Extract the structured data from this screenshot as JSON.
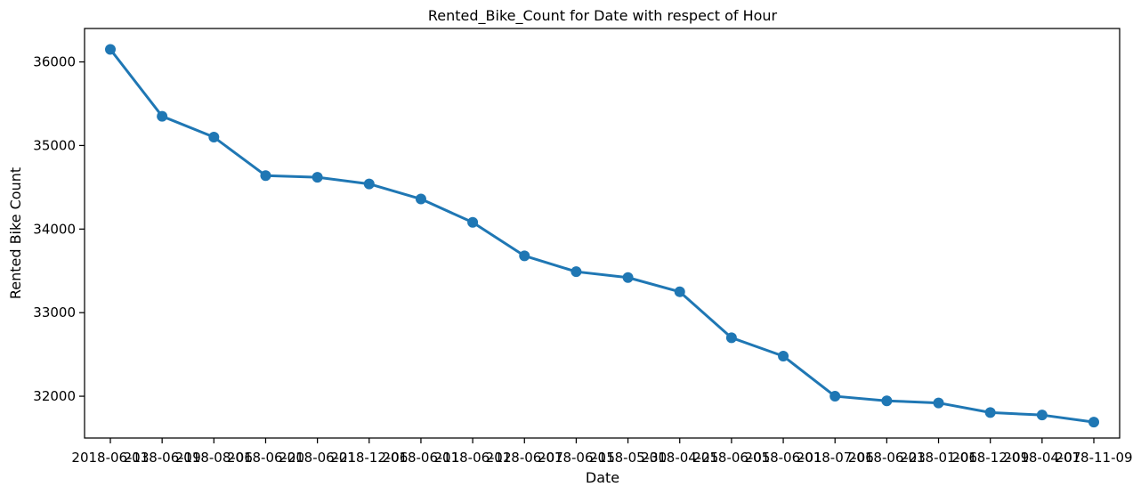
{
  "chart_data": {
    "type": "line",
    "title": "Rented_Bike_Count for Date with respect of Hour",
    "xlabel": "Date",
    "ylabel": "Rented Bike Count",
    "grid": false,
    "ylim": [
      31500,
      36400
    ],
    "yticks": [
      32000,
      33000,
      34000,
      35000,
      36000
    ],
    "color": "#1f77b4",
    "categories": [
      "2018-06-13",
      "2018-06-19",
      "2018-08-06",
      "2018-06-20",
      "2018-06-21",
      "2018-12-06",
      "2018-06-11",
      "2018-06-12",
      "2018-06-07",
      "2018-06-15",
      "2018-05-30",
      "2018-04-25",
      "2018-06-05",
      "2018-06-01",
      "2018-07-06",
      "2018-06-23",
      "2018-01-06",
      "2018-12-09",
      "2018-04-07",
      "2018-11-09"
    ],
    "values": [
      36150,
      35350,
      35100,
      34640,
      34620,
      34540,
      34360,
      34080,
      33680,
      33490,
      33420,
      33250,
      32700,
      32480,
      32000,
      31945,
      31920,
      31805,
      31775,
      31690
    ]
  }
}
